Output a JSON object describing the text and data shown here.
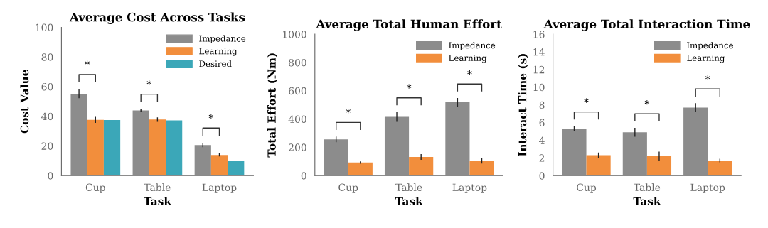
{
  "chart_data": [
    {
      "type": "bar",
      "title": "Average Cost Across Tasks",
      "xlabel": "Task",
      "ylabel": "Cost Value",
      "categories": [
        "Cup",
        "Table",
        "Laptop"
      ],
      "series": [
        {
          "name": "Impedance",
          "color": "#8c8c8c",
          "values": [
            55.2,
            43.9,
            20.6
          ],
          "errors": [
            3,
            1,
            1.5
          ]
        },
        {
          "name": "Learning",
          "color": "#f28e3c",
          "values": [
            37.6,
            37.8,
            13.9
          ],
          "errors": [
            2,
            1.5,
            1
          ]
        },
        {
          "name": "Desired",
          "color": "#3ba7b8",
          "values": [
            37.5,
            37.2,
            10.0
          ]
        }
      ],
      "ylim": [
        0,
        100
      ],
      "yticks": [
        0,
        20,
        40,
        60,
        80,
        100
      ],
      "grid": false,
      "legend": "top right",
      "annotations": [
        "*",
        "*",
        "*"
      ]
    },
    {
      "type": "bar",
      "title": "Average Total Human Effort",
      "xlabel": "Task",
      "ylabel": "Total Effort (Nm)",
      "categories": [
        "Cup",
        "Table",
        "Laptop"
      ],
      "series": [
        {
          "name": "Impedance",
          "color": "#8c8c8c",
          "values": [
            256,
            415,
            518
          ],
          "errors": [
            20,
            35,
            30
          ]
        },
        {
          "name": "Learning",
          "color": "#f28e3c",
          "values": [
            92,
            132,
            105
          ],
          "errors": [
            8,
            20,
            20
          ]
        }
      ],
      "ylim": [
        0,
        1000
      ],
      "yticks": [
        0,
        200,
        400,
        600,
        800,
        1000
      ],
      "grid": false,
      "legend": "top right",
      "annotations": [
        "*",
        "*",
        "*"
      ]
    },
    {
      "type": "bar",
      "title": "Average Total Interaction Time",
      "xlabel": "Task",
      "ylabel": "Interact Time (s)",
      "categories": [
        "Cup",
        "Table",
        "Laptop"
      ],
      "series": [
        {
          "name": "Impedance",
          "color": "#8c8c8c",
          "values": [
            5.3,
            4.9,
            7.7
          ],
          "errors": [
            0.3,
            0.5,
            0.5
          ]
        },
        {
          "name": "Learning",
          "color": "#f28e3c",
          "values": [
            2.3,
            2.2,
            1.7
          ],
          "errors": [
            0.3,
            0.5,
            0.2
          ]
        }
      ],
      "ylim": [
        0,
        16
      ],
      "yticks": [
        0,
        2,
        4,
        6,
        8,
        10,
        12,
        14,
        16
      ],
      "grid": false,
      "legend": "top right",
      "annotations": [
        "*",
        "*",
        "*"
      ]
    }
  ]
}
